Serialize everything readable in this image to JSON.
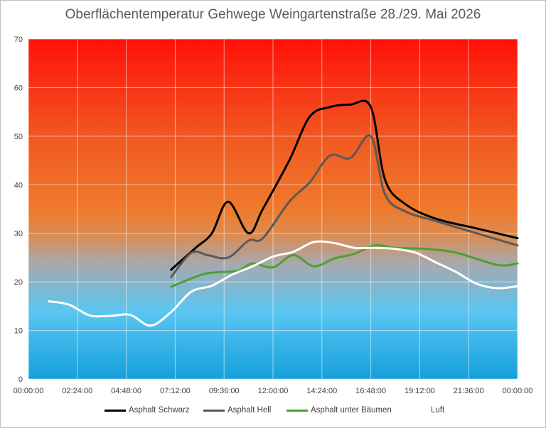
{
  "chart_data": {
    "type": "line",
    "title": "Oberflächentemperatur Gehwege Weingartenstraße 28./29. Mai 2026",
    "xlabel": "",
    "ylabel": "",
    "x_unit": "hours since 00:00:00",
    "xlim": [
      0,
      24
    ],
    "ylim": [
      0,
      70
    ],
    "x_ticks": [
      {
        "value": 0,
        "label": "00:00:00"
      },
      {
        "value": 2.4,
        "label": "02:24:00"
      },
      {
        "value": 4.8,
        "label": "04:48:00"
      },
      {
        "value": 7.2,
        "label": "07:12:00"
      },
      {
        "value": 9.6,
        "label": "09:36:00"
      },
      {
        "value": 12,
        "label": "12:00:00"
      },
      {
        "value": 14.4,
        "label": "14:24:00"
      },
      {
        "value": 16.8,
        "label": "16:48:00"
      },
      {
        "value": 19.2,
        "label": "19:12:00"
      },
      {
        "value": 21.6,
        "label": "21:36:00"
      },
      {
        "value": 24,
        "label": "00:00:00"
      }
    ],
    "y_ticks": [
      0,
      10,
      20,
      30,
      40,
      50,
      60,
      70
    ],
    "grid": true,
    "legend_position": "bottom",
    "background_gradient": "red (top) to orange to blue (bottom)",
    "series": [
      {
        "name": "Asphalt Schwarz",
        "color": "#000000",
        "x": [
          7.0,
          8.2,
          9.0,
          9.8,
          10.8,
          11.5,
          12.8,
          13.8,
          14.8,
          15.8,
          16.8,
          17.5,
          18.5,
          20.0,
          22.0,
          24.0
        ],
        "y": [
          22.5,
          27.0,
          30.0,
          36.5,
          30.0,
          35.0,
          45.0,
          54.0,
          56.0,
          56.5,
          56.0,
          41.0,
          36.0,
          33.0,
          31.0,
          29.0
        ]
      },
      {
        "name": "Asphalt Hell",
        "color": "#595959",
        "x": [
          7.0,
          8.0,
          8.8,
          9.8,
          10.8,
          11.5,
          12.8,
          13.8,
          14.8,
          15.8,
          16.8,
          17.5,
          18.5,
          20.0,
          22.0,
          24.0
        ],
        "y": [
          21.0,
          26.0,
          25.5,
          25.0,
          28.5,
          29.0,
          36.5,
          40.5,
          46.0,
          45.5,
          50.0,
          38.0,
          34.5,
          32.5,
          30.0,
          27.5
        ]
      },
      {
        "name": "Asphalt unter Bäumen",
        "color": "#4aa12f",
        "x": [
          7.0,
          8.5,
          9.3,
          10.3,
          11.0,
          12.0,
          13.0,
          14.0,
          15.0,
          16.0,
          17.0,
          18.0,
          19.5,
          21.0,
          23.0,
          24.0
        ],
        "y": [
          19.0,
          21.5,
          22.0,
          22.3,
          23.8,
          23.0,
          25.5,
          23.2,
          24.8,
          25.8,
          27.5,
          27.0,
          26.8,
          26.0,
          23.5,
          23.8
        ]
      },
      {
        "name": "Luft",
        "color": "#ffffff",
        "x": [
          1.0,
          2.0,
          3.0,
          4.0,
          5.0,
          6.0,
          7.0,
          8.0,
          9.0,
          10.0,
          11.0,
          12.0,
          13.0,
          14.0,
          15.0,
          16.0,
          17.0,
          18.0,
          19.0,
          20.0,
          21.0,
          22.0,
          23.0,
          24.0
        ],
        "y": [
          16.0,
          15.3,
          13.1,
          13.0,
          13.2,
          11.0,
          13.8,
          18.0,
          19.2,
          21.5,
          23.2,
          25.2,
          26.2,
          28.2,
          28.0,
          27.0,
          27.0,
          26.8,
          26.0,
          24.0,
          22.0,
          19.6,
          18.7,
          19.1
        ]
      }
    ]
  }
}
